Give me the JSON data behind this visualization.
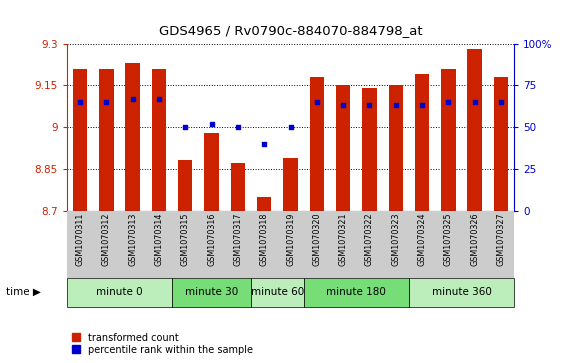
{
  "title": "GDS4965 / Rv0790c-884070-884798_at",
  "samples": [
    "GSM1070311",
    "GSM1070312",
    "GSM1070313",
    "GSM1070314",
    "GSM1070315",
    "GSM1070316",
    "GSM1070317",
    "GSM1070318",
    "GSM1070319",
    "GSM1070320",
    "GSM1070321",
    "GSM1070322",
    "GSM1070323",
    "GSM1070324",
    "GSM1070325",
    "GSM1070326",
    "GSM1070327"
  ],
  "bar_values": [
    9.21,
    9.21,
    9.23,
    9.21,
    8.88,
    8.98,
    8.87,
    8.75,
    8.89,
    9.18,
    9.15,
    9.14,
    9.15,
    9.19,
    9.21,
    9.28,
    9.18
  ],
  "dot_values": [
    9.09,
    9.09,
    9.1,
    9.1,
    9.0,
    9.01,
    9.0,
    8.94,
    9.0,
    9.09,
    9.08,
    9.08,
    9.08,
    9.08,
    9.09,
    9.09,
    9.09
  ],
  "ymin": 8.7,
  "ymax": 9.3,
  "yticks": [
    8.7,
    8.85,
    9.0,
    9.15,
    9.3
  ],
  "ytick_labels": [
    "8.7",
    "8.85",
    "9",
    "9.15",
    "9.3"
  ],
  "y2ticks": [
    0,
    25,
    50,
    75,
    100
  ],
  "y2tick_labels": [
    "0",
    "25",
    "50",
    "75",
    "100%"
  ],
  "bar_color": "#cc2200",
  "dot_color": "#0000cc",
  "groups": [
    {
      "label": "minute 0",
      "indices": [
        0,
        1,
        2,
        3
      ],
      "color": "#bbeebb"
    },
    {
      "label": "minute 30",
      "indices": [
        4,
        5,
        6
      ],
      "color": "#77dd77"
    },
    {
      "label": "minute 60",
      "indices": [
        7,
        8
      ],
      "color": "#bbeebb"
    },
    {
      "label": "minute 180",
      "indices": [
        9,
        10,
        11,
        12
      ],
      "color": "#77dd77"
    },
    {
      "label": "minute 360",
      "indices": [
        13,
        14,
        15,
        16
      ],
      "color": "#bbeebb"
    }
  ],
  "legend_items": [
    {
      "label": "transformed count",
      "color": "#cc2200"
    },
    {
      "label": "percentile rank within the sample",
      "color": "#0000cc"
    }
  ],
  "bar_width": 0.55,
  "background_color": "#ffffff",
  "tick_color_left": "#cc2200",
  "tick_color_right": "#0000cc",
  "gray_label_bg": "#cccccc"
}
